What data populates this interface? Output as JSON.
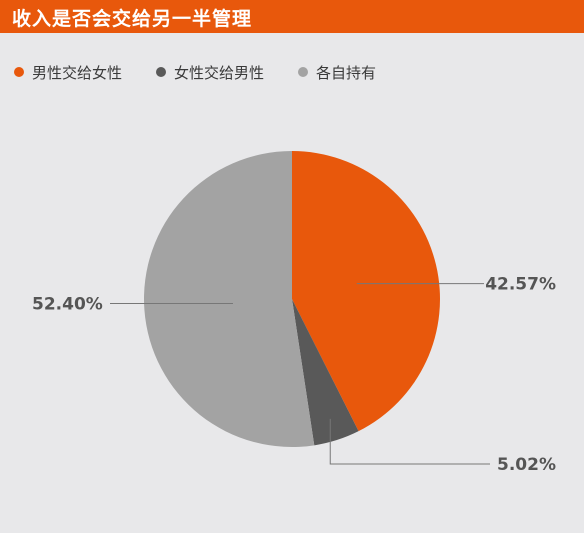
{
  "header": {
    "title": "收入是否会交给另一半管理"
  },
  "colors": {
    "header_bg": "#e8580c",
    "background": "#e8e8ea"
  },
  "chart_data": {
    "type": "pie",
    "title": "收入是否会交给另一半管理",
    "legend_position": "top-left",
    "slices": [
      {
        "name": "男性交给女性",
        "value": 42.57,
        "label": "42.57%",
        "color": "#e8580c"
      },
      {
        "name": "女性交给男性",
        "value": 5.02,
        "label": "5.02%",
        "color": "#595959"
      },
      {
        "name": "各自持有",
        "value": 52.4,
        "label": "52.40%",
        "color": "#a3a3a3"
      }
    ]
  }
}
